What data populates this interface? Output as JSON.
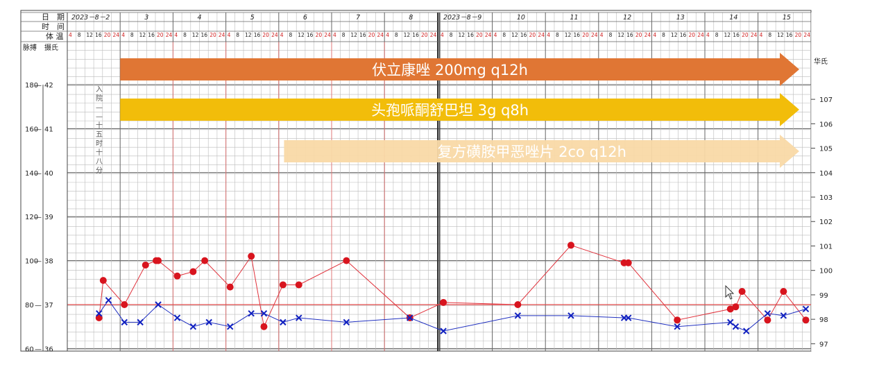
{
  "chart_data": {
    "type": "line",
    "header": {
      "date_label": "日　期",
      "time_label": "时　间",
      "temp_label": "体 温",
      "pulse_label": "脉搏",
      "celsius_label": "摄氏",
      "fahrenheit_label": "华氏",
      "dates": [
        "2023－8－2",
        "3",
        "4",
        "5",
        "6",
        "7",
        "8",
        "2023－8－9",
        "10",
        "11",
        "12",
        "13",
        "14",
        "15"
      ],
      "hours": [
        "4",
        "8",
        "12",
        "16",
        "20",
        "24"
      ]
    },
    "axes": {
      "pulse_ticks": [
        "60",
        "80",
        "100",
        "120",
        "140",
        "160",
        "180"
      ],
      "celsius_ticks": [
        "36",
        "37",
        "38",
        "39",
        "40",
        "41",
        "42"
      ],
      "fahrenheit_ticks": [
        "97",
        "98",
        "99",
        "100",
        "101",
        "102",
        "103",
        "104",
        "105",
        "106",
        "107"
      ],
      "celsius_range": [
        36,
        42
      ],
      "pulse_range": [
        60,
        180
      ]
    },
    "annotation": "入院——十五时十八分",
    "drugs": [
      {
        "label": "伏立康唑 200mg q12h",
        "color": "#e07634",
        "start_day": 1
      },
      {
        "label": "头孢哌酮舒巴坦 3g q8h",
        "color": "#f2bd0a",
        "start_day": 1
      },
      {
        "label": "复方磺胺甲恶唑片 2co q12h",
        "color": "#f9d9a7",
        "start_day": 4.1
      }
    ],
    "series": [
      {
        "name": "脉搏",
        "color": "#e0303a",
        "marker": "dot",
        "points": [
          {
            "t": 0.6,
            "v": 74
          },
          {
            "t": 0.68,
            "v": 91
          },
          {
            "t": 1.08,
            "v": 80
          },
          {
            "t": 1.48,
            "v": 98
          },
          {
            "t": 1.68,
            "v": 100
          },
          {
            "t": 1.72,
            "v": 100
          },
          {
            "t": 2.08,
            "v": 93
          },
          {
            "t": 2.38,
            "v": 95
          },
          {
            "t": 2.6,
            "v": 100
          },
          {
            "t": 3.08,
            "v": 88
          },
          {
            "t": 3.48,
            "v": 102
          },
          {
            "t": 3.72,
            "v": 70
          },
          {
            "t": 4.08,
            "v": 89
          },
          {
            "t": 4.38,
            "v": 89
          },
          {
            "t": 5.28,
            "v": 100
          },
          {
            "t": 6.48,
            "v": 74
          },
          {
            "t": 7.08,
            "v": 81
          },
          {
            "t": 8.48,
            "v": 80
          },
          {
            "t": 9.48,
            "v": 107
          },
          {
            "t": 10.48,
            "v": 99
          },
          {
            "t": 10.56,
            "v": 99
          },
          {
            "t": 11.48,
            "v": 73
          },
          {
            "t": 12.48,
            "v": 78
          },
          {
            "t": 12.58,
            "v": 79
          },
          {
            "t": 12.7,
            "v": 86
          },
          {
            "t": 13.18,
            "v": 73
          },
          {
            "t": 13.48,
            "v": 86
          },
          {
            "t": 13.9,
            "v": 73
          }
        ]
      },
      {
        "name": "体温",
        "color": "#2030c0",
        "marker": "x",
        "points": [
          {
            "t": 0.6,
            "v": 36.8
          },
          {
            "t": 0.78,
            "v": 37.1
          },
          {
            "t": 1.08,
            "v": 36.6
          },
          {
            "t": 1.38,
            "v": 36.6
          },
          {
            "t": 1.72,
            "v": 37.0
          },
          {
            "t": 2.08,
            "v": 36.7
          },
          {
            "t": 2.38,
            "v": 36.5
          },
          {
            "t": 2.68,
            "v": 36.6
          },
          {
            "t": 3.08,
            "v": 36.5
          },
          {
            "t": 3.48,
            "v": 36.8
          },
          {
            "t": 3.72,
            "v": 36.8
          },
          {
            "t": 4.08,
            "v": 36.6
          },
          {
            "t": 4.38,
            "v": 36.7
          },
          {
            "t": 5.28,
            "v": 36.6
          },
          {
            "t": 6.48,
            "v": 36.7
          },
          {
            "t": 7.08,
            "v": 36.4
          },
          {
            "t": 8.48,
            "v": 36.75
          },
          {
            "t": 9.48,
            "v": 36.75
          },
          {
            "t": 10.48,
            "v": 36.7
          },
          {
            "t": 10.56,
            "v": 36.7
          },
          {
            "t": 11.48,
            "v": 36.5
          },
          {
            "t": 12.48,
            "v": 36.6
          },
          {
            "t": 12.58,
            "v": 36.5
          },
          {
            "t": 12.78,
            "v": 36.4
          },
          {
            "t": 13.18,
            "v": 36.8
          },
          {
            "t": 13.48,
            "v": 36.75
          },
          {
            "t": 13.9,
            "v": 36.9
          }
        ]
      }
    ]
  }
}
